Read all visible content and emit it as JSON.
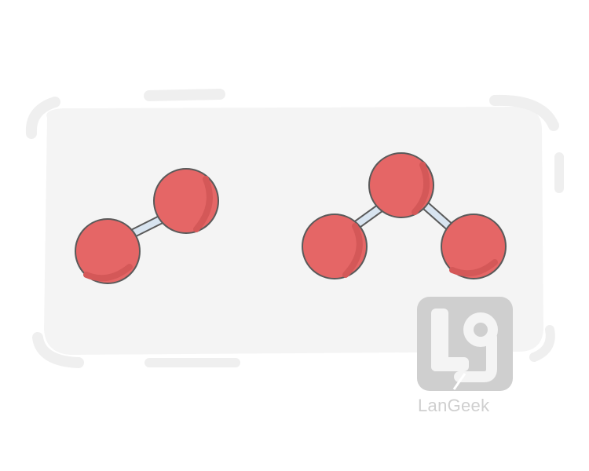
{
  "illustration": {
    "subject": "molecules",
    "molecules": [
      {
        "name": "diatomic-molecule",
        "atom_count": 2
      },
      {
        "name": "triatomic-molecule",
        "atom_count": 3
      }
    ]
  },
  "watermark": {
    "brand_text": "LanGeek"
  },
  "colors": {
    "background_card": "#f4f4f4",
    "atom_fill": "#e56666",
    "atom_shade": "#d45858",
    "atom_outline": "#5a5a5a",
    "bond_fill": "#d8e4f0",
    "watermark": "#cfcfcf"
  }
}
